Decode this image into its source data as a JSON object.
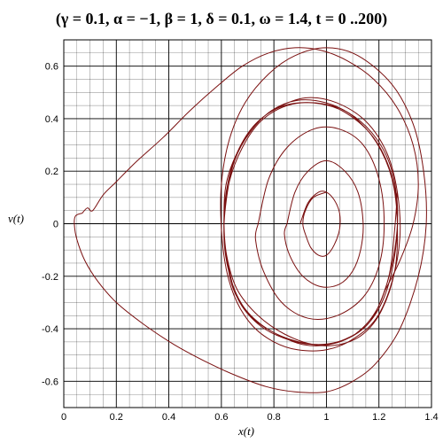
{
  "chart_data": {
    "type": "line",
    "title": "(γ = 0.1, α = −1, β = 1, δ = 0.1, ω = 1.4, t = 0 ..200)",
    "xlabel": "x(t)",
    "ylabel": "v(t)",
    "xlim": [
      0,
      1.4
    ],
    "ylim": [
      -0.7,
      0.7
    ],
    "x_ticks": [
      "0",
      "0.2",
      "0.4",
      "0.6",
      "0.8",
      "1",
      "1.2",
      "1.4"
    ],
    "y_ticks": [
      "-0.6",
      "-0.4",
      "-0.2",
      "0",
      "0.2",
      "0.4",
      "0.6"
    ],
    "grid": true,
    "line_color": "#7a1010",
    "series": [
      {
        "x": [
          0.07,
          0.045,
          0.04,
          0.05,
          0.08,
          0.13,
          0.2,
          0.3,
          0.42,
          0.55,
          0.66,
          0.77,
          0.88,
          1.0,
          1.1,
          1.19,
          1.28,
          1.35,
          1.38,
          1.37,
          1.33,
          1.25,
          1.12,
          1.0,
          0.88,
          0.78,
          0.69,
          0.63,
          0.6,
          0.6,
          0.62,
          0.66,
          0.72,
          0.8,
          0.89,
          1.0,
          1.1,
          1.19,
          1.25,
          1.28,
          1.27,
          1.23,
          1.15,
          1.04,
          0.93,
          0.83,
          0.73,
          0.66,
          0.62,
          0.61,
          0.63,
          0.67,
          0.75,
          0.85,
          0.95,
          1.05,
          1.15,
          1.22,
          1.26,
          1.27,
          1.24,
          1.17,
          1.06,
          0.95,
          0.84,
          0.74,
          0.67,
          0.62,
          0.61,
          0.62,
          0.66,
          0.74,
          0.84,
          0.95,
          1.05,
          1.14,
          1.21,
          1.26,
          1.27,
          1.25,
          1.19,
          1.1,
          1.0,
          0.89,
          0.79,
          0.71,
          0.65,
          0.62,
          0.61,
          0.63,
          0.68,
          0.76,
          0.86,
          0.97,
          1.07,
          1.16,
          1.22,
          1.26,
          1.27,
          1.24,
          1.17,
          1.07,
          0.96,
          0.85,
          0.75,
          0.68,
          0.63,
          0.61,
          0.62,
          0.65,
          0.72,
          0.81,
          0.91,
          1.01,
          1.11,
          1.19,
          1.24,
          1.26,
          1.27
        ],
        "y": [
          0.04,
          0.03,
          0.0,
          -0.06,
          -0.14,
          -0.22,
          -0.3,
          -0.38,
          -0.46,
          -0.53,
          -0.58,
          -0.62,
          -0.64,
          -0.64,
          -0.6,
          -0.53,
          -0.4,
          -0.2,
          0.0,
          0.2,
          0.38,
          0.53,
          0.64,
          0.67,
          0.64,
          0.57,
          0.46,
          0.32,
          0.15,
          -0.02,
          -0.18,
          -0.3,
          -0.39,
          -0.45,
          -0.48,
          -0.48,
          -0.44,
          -0.36,
          -0.22,
          -0.05,
          0.12,
          0.27,
          0.39,
          0.46,
          0.48,
          0.45,
          0.38,
          0.27,
          0.13,
          -0.03,
          -0.18,
          -0.3,
          -0.39,
          -0.44,
          -0.46,
          -0.45,
          -0.39,
          -0.28,
          -0.12,
          0.05,
          0.21,
          0.34,
          0.43,
          0.46,
          0.45,
          0.39,
          0.29,
          0.16,
          0.02,
          -0.12,
          -0.25,
          -0.35,
          -0.42,
          -0.46,
          -0.46,
          -0.42,
          -0.33,
          -0.18,
          0.0,
          0.17,
          0.31,
          0.41,
          0.46,
          0.47,
          0.43,
          0.35,
          0.24,
          0.1,
          -0.05,
          -0.19,
          -0.31,
          -0.39,
          -0.44,
          -0.46,
          -0.44,
          -0.38,
          -0.26,
          -0.1,
          0.07,
          0.23,
          0.35,
          0.43,
          0.46,
          0.45,
          0.39,
          0.29,
          0.16,
          0.02,
          -0.13,
          -0.26,
          -0.36,
          -0.42,
          -0.46,
          -0.46,
          -0.42,
          -0.33,
          -0.19,
          -0.02,
          0.12
        ]
      },
      {
        "x": [
          0.07,
          0.09,
          0.11,
          0.15,
          0.2,
          0.28,
          0.38,
          0.48,
          0.58,
          0.68,
          0.78,
          0.88,
          0.98,
          1.08,
          1.18,
          1.27,
          1.33,
          1.35,
          1.33,
          1.28,
          1.22
        ],
        "y": [
          0.04,
          0.06,
          0.05,
          0.11,
          0.16,
          0.24,
          0.33,
          0.43,
          0.52,
          0.6,
          0.65,
          0.67,
          0.66,
          0.62,
          0.55,
          0.44,
          0.3,
          0.15,
          0.0,
          -0.14,
          -0.26
        ]
      },
      {
        "x": [
          0.9,
          0.93,
          0.97,
          1.0,
          1.03,
          1.05,
          1.05,
          1.03,
          1.0,
          0.97,
          0.94,
          0.92,
          0.91,
          0.92,
          0.95,
          1.0
        ],
        "y": [
          0.0,
          0.08,
          0.12,
          0.12,
          0.09,
          0.04,
          -0.02,
          -0.08,
          -0.12,
          -0.12,
          -0.09,
          -0.04,
          0.0,
          0.05,
          0.1,
          0.12
        ]
      },
      {
        "x": [
          0.85,
          0.88,
          0.93,
          1.0,
          1.07,
          1.12,
          1.14,
          1.13,
          1.1,
          1.05,
          0.98,
          0.91,
          0.86,
          0.84,
          0.85
        ],
        "y": [
          0.0,
          0.12,
          0.2,
          0.24,
          0.2,
          0.12,
          0.0,
          -0.1,
          -0.18,
          -0.23,
          -0.24,
          -0.2,
          -0.12,
          -0.04,
          0.0
        ]
      },
      {
        "x": [
          0.74,
          0.78,
          0.85,
          0.95,
          1.05,
          1.14,
          1.2,
          1.22,
          1.2,
          1.14,
          1.04,
          0.93,
          0.83,
          0.76,
          0.73,
          0.74
        ],
        "y": [
          0.0,
          0.17,
          0.29,
          0.36,
          0.36,
          0.3,
          0.17,
          0.0,
          -0.16,
          -0.28,
          -0.35,
          -0.36,
          -0.3,
          -0.18,
          -0.06,
          0.0
        ]
      }
    ]
  }
}
